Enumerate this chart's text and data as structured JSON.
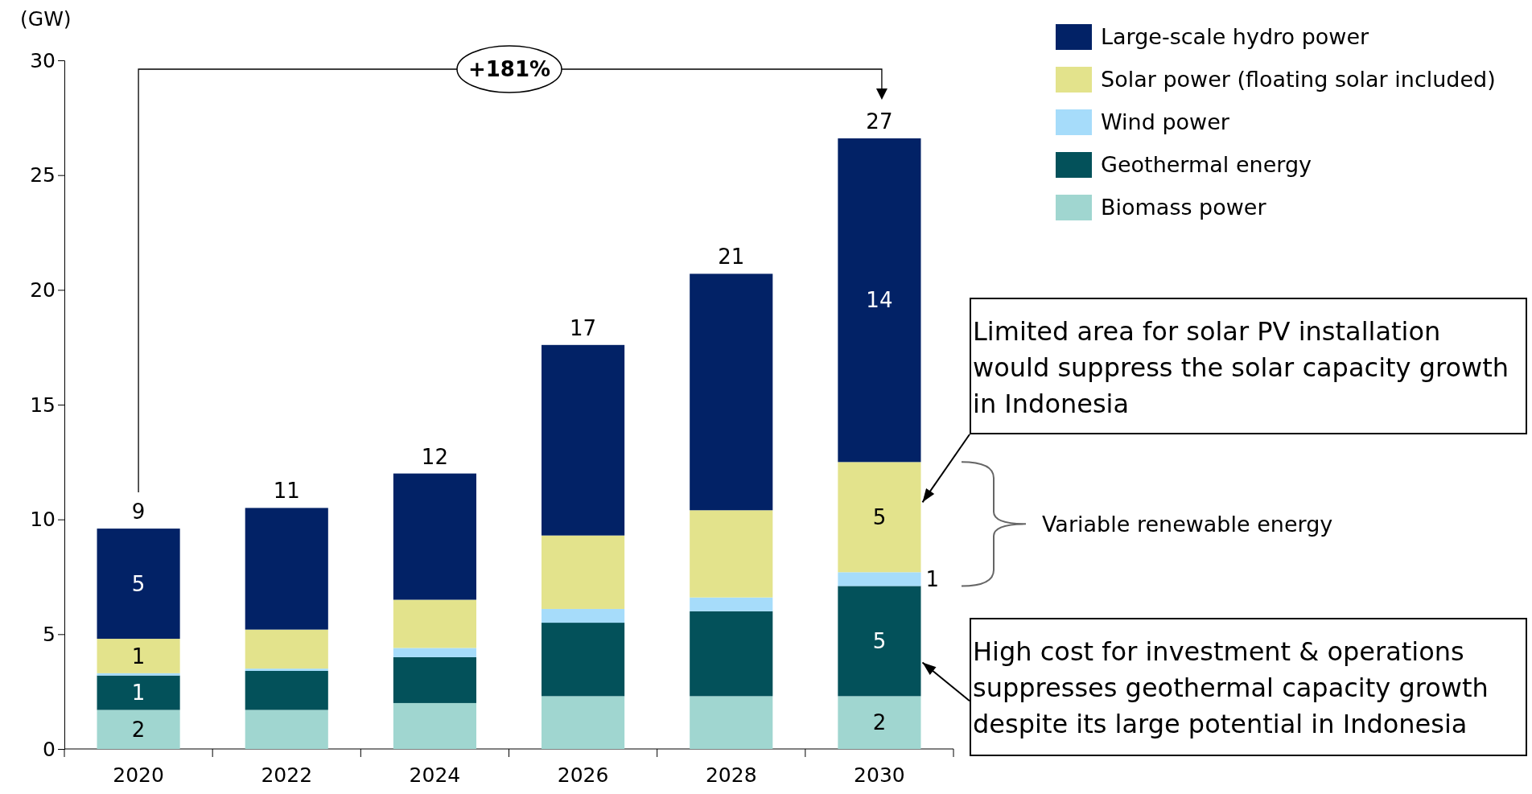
{
  "chart_data": {
    "type": "bar",
    "stacked": true,
    "ylabel": "(GW)",
    "categories": [
      "2020",
      "2022",
      "2024",
      "2026",
      "2028",
      "2030"
    ],
    "ylim": [
      0,
      30
    ],
    "yticks": [
      0,
      5,
      10,
      15,
      20,
      25,
      30
    ],
    "legend": "top right",
    "grid": false,
    "series": [
      {
        "name": "Biomass power",
        "color": "#a0d6d0",
        "values": [
          1.7,
          1.7,
          2.0,
          2.3,
          2.3,
          2.3
        ],
        "value_labels": [
          "2",
          null,
          null,
          null,
          null,
          "2"
        ]
      },
      {
        "name": "Geothermal energy",
        "color": "#03515a",
        "values": [
          1.5,
          1.7,
          2.0,
          3.2,
          3.7,
          4.8
        ],
        "value_labels": [
          "1",
          null,
          null,
          null,
          null,
          "5"
        ]
      },
      {
        "name": "Wind power",
        "color": "#a6dcfa",
        "values": [
          0.1,
          0.1,
          0.4,
          0.6,
          0.6,
          0.6
        ],
        "value_labels": [
          null,
          null,
          null,
          null,
          null,
          "1"
        ]
      },
      {
        "name": "Solar power (floating solar included)",
        "color": "#e3e38c",
        "values": [
          1.5,
          1.7,
          2.1,
          3.2,
          3.8,
          4.8
        ],
        "value_labels": [
          "1",
          null,
          null,
          null,
          null,
          "5"
        ]
      },
      {
        "name": "Large-scale hydro power",
        "color": "#022266",
        "values": [
          4.8,
          5.3,
          5.5,
          8.3,
          10.3,
          14.1
        ],
        "value_labels": [
          "5",
          null,
          null,
          null,
          null,
          "14"
        ]
      }
    ],
    "totals": [
      "9",
      "11",
      "12",
      "17",
      "21",
      "27"
    ],
    "annotations": [
      "+181%",
      "Variable renewable energy",
      "Limited area for solar PV installation would suppress the solar capacity growth in Indonesia",
      "High cost for investment & operations suppresses geothermal capacity growth despite its large potential in Indonesia"
    ]
  }
}
